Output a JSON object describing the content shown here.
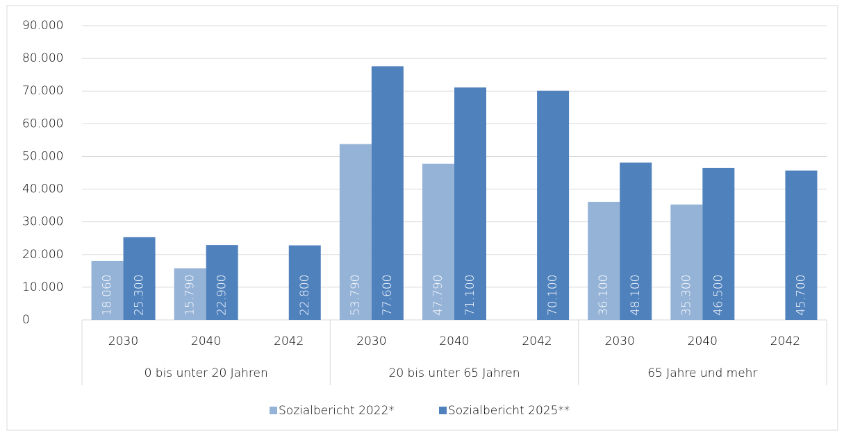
{
  "chart_data": {
    "type": "bar",
    "categories": [
      "2030",
      "2040",
      "2042",
      "2030",
      "2040",
      "2042",
      "2030",
      "2040",
      "2042"
    ],
    "category_groups": [
      "0 bis unter 20 Jahren",
      "20 bis unter 65 Jahren",
      "65 Jahre und mehr"
    ],
    "series": [
      {
        "name": "Sozialbericht 2022*",
        "color": "#95b3d7",
        "values": [
          18060,
          15790,
          null,
          53790,
          47790,
          null,
          36100,
          35300,
          null
        ],
        "value_labels": [
          "18.060",
          "15.790",
          null,
          "53.790",
          "47.790",
          null,
          "36.100",
          "35.300",
          null
        ]
      },
      {
        "name": "Sozialbericht 2025**",
        "color": "#4f81bd",
        "values": [
          25300,
          22900,
          22800,
          77600,
          71100,
          70100,
          48100,
          46500,
          45700
        ],
        "value_labels": [
          "25.300",
          "22.900",
          "22.800",
          "77.600",
          "71.100",
          "70.100",
          "48.100",
          "46.500",
          "45.700"
        ]
      }
    ],
    "ylim": [
      0,
      90000
    ],
    "yticks": [
      0,
      {
        "value": 10000,
        "label": "10.000"
      },
      {
        "value": 20000,
        "label": "20.000"
      },
      {
        "value": 30000,
        "label": "30.000"
      },
      {
        "value": 40000,
        "label": "40.000"
      },
      {
        "value": 50000,
        "label": "50.000"
      },
      {
        "value": 60000,
        "label": "60.000"
      },
      {
        "value": 70000,
        "label": "70.000"
      },
      {
        "value": 80000,
        "label": "80.000"
      },
      {
        "value": 90000,
        "label": "90.000"
      }
    ],
    "grid": true,
    "legend": "bottom"
  }
}
